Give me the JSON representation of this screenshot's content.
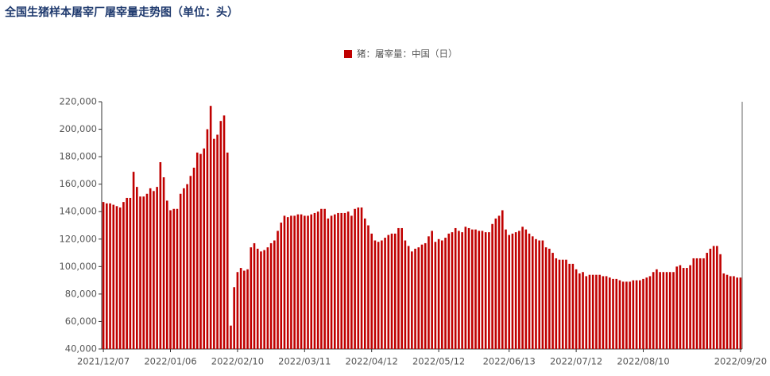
{
  "chart_data": {
    "type": "bar",
    "title": "全国生猪样本屠宰厂屠宰量走势图（单位：头）",
    "series": [
      {
        "name": "猪：屠宰量：中国（日）",
        "color": "#c00000",
        "values": [
          147000,
          146000,
          146000,
          145000,
          144000,
          143000,
          147000,
          150000,
          150000,
          169000,
          158000,
          151000,
          151000,
          153000,
          157000,
          155000,
          158000,
          176000,
          165000,
          148000,
          141000,
          142000,
          142000,
          153000,
          157000,
          160000,
          166000,
          172000,
          183000,
          182000,
          186000,
          200000,
          217000,
          193000,
          196000,
          206000,
          210000,
          183000,
          57000,
          85000,
          96000,
          99000,
          97000,
          98000,
          114000,
          117000,
          113000,
          111000,
          112000,
          114000,
          117000,
          119000,
          126000,
          132000,
          137000,
          136000,
          137000,
          137000,
          138000,
          138000,
          137000,
          137000,
          138000,
          139000,
          140000,
          142000,
          142000,
          135000,
          137000,
          138000,
          139000,
          139000,
          139000,
          140000,
          137000,
          142000,
          143000,
          143000,
          135000,
          130000,
          124000,
          119000,
          118000,
          119000,
          121000,
          123000,
          124000,
          124000,
          128000,
          128000,
          119000,
          115000,
          111000,
          113000,
          114000,
          116000,
          117000,
          122000,
          126000,
          118000,
          120000,
          119000,
          121000,
          124000,
          125000,
          128000,
          126000,
          125000,
          129000,
          128000,
          127000,
          127000,
          126000,
          126000,
          125000,
          125000,
          131000,
          135000,
          137000,
          141000,
          127000,
          123000,
          124000,
          125000,
          126000,
          129000,
          127000,
          124000,
          122000,
          120000,
          119000,
          119000,
          114000,
          113000,
          110000,
          106000,
          105000,
          105000,
          105000,
          102000,
          102000,
          98000,
          95000,
          96000,
          93000,
          94000,
          94000,
          94000,
          94000,
          93000,
          93000,
          92000,
          91000,
          91000,
          90000,
          89000,
          89000,
          89000,
          90000,
          90000,
          90000,
          91000,
          92000,
          93000,
          96000,
          98000,
          96000,
          96000,
          96000,
          96000,
          96000,
          100000,
          101000,
          99000,
          99000,
          101000,
          106000,
          106000,
          106000,
          106000,
          110000,
          113000,
          115000,
          115000,
          109000,
          95000,
          94000,
          93000,
          93000,
          92000,
          92000
        ]
      }
    ],
    "categories": [
      "2021/12/07",
      null,
      null,
      null,
      null,
      null,
      null,
      null,
      null,
      null,
      null,
      null,
      null,
      null,
      null,
      null,
      null,
      null,
      null,
      null,
      "2022/01/06",
      null,
      null,
      null,
      null,
      null,
      null,
      null,
      null,
      null,
      null,
      null,
      null,
      null,
      null,
      null,
      null,
      null,
      null,
      null,
      "2022/02/10",
      null,
      null,
      null,
      null,
      null,
      null,
      null,
      null,
      null,
      null,
      null,
      null,
      null,
      null,
      null,
      null,
      null,
      null,
      null,
      "2022/03/11",
      null,
      null,
      null,
      null,
      null,
      null,
      null,
      null,
      null,
      null,
      null,
      null,
      null,
      null,
      null,
      null,
      null,
      null,
      null,
      "2022/04/12",
      null,
      null,
      null,
      null,
      null,
      null,
      null,
      null,
      null,
      null,
      null,
      null,
      null,
      null,
      null,
      null,
      null,
      null,
      null,
      "2022/05/12",
      null,
      null,
      null,
      null,
      null,
      null,
      null,
      null,
      null,
      null,
      null,
      null,
      null,
      null,
      null,
      null,
      null,
      null,
      null,
      null,
      "2022/06/13",
      null,
      null,
      null,
      null,
      null,
      null,
      null,
      null,
      null,
      null,
      null,
      null,
      null,
      null,
      null,
      null,
      null,
      null,
      null,
      "2022/07/12",
      null,
      null,
      null,
      null,
      null,
      null,
      null,
      null,
      null,
      null,
      null,
      null,
      null,
      null,
      null,
      null,
      null,
      null,
      null,
      "2022/08/10",
      null,
      null,
      null,
      null,
      null,
      null,
      null,
      null,
      null,
      null,
      null,
      null,
      null,
      null,
      null,
      null,
      null,
      null,
      null,
      null,
      null,
      null,
      null,
      null,
      null,
      null,
      null,
      null,
      "2022/09/20"
    ],
    "ylim": [
      40000,
      220000
    ],
    "yticks": [
      {
        "value": 40000,
        "label": "40,000"
      },
      {
        "value": 60000,
        "label": "60,000"
      },
      {
        "value": 80000,
        "label": "80,000"
      },
      {
        "value": 100000,
        "label": "100,000"
      },
      {
        "value": 120000,
        "label": "120,000"
      },
      {
        "value": 140000,
        "label": "140,000"
      },
      {
        "value": 160000,
        "label": "160,000"
      },
      {
        "value": 180000,
        "label": "180,000"
      },
      {
        "value": 200000,
        "label": "200,000"
      },
      {
        "value": 220000,
        "label": "220,000"
      }
    ],
    "legend": "top"
  }
}
